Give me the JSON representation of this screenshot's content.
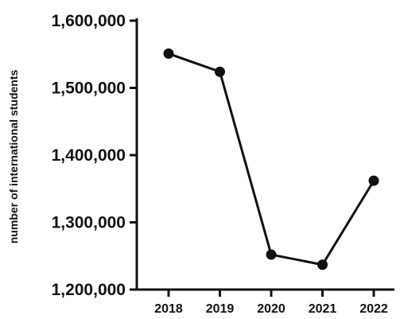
{
  "chart_data": {
    "type": "line",
    "title": "",
    "xlabel": "",
    "ylabel": "number of international students",
    "categories": [
      "2018",
      "2019",
      "2020",
      "2021",
      "2022"
    ],
    "series": [
      {
        "values": [
          1551000,
          1524000,
          1252000,
          1237000,
          1362000
        ]
      }
    ],
    "ylim": [
      1200000,
      1600000
    ],
    "yticks": [
      1200000,
      1300000,
      1400000,
      1500000,
      1600000
    ],
    "ytick_labels": [
      "1,200,000",
      "1,300,000",
      "1,400,000",
      "1,500,000",
      "1,600,000"
    ],
    "grid": false,
    "legend": "none",
    "line_color": "#111111",
    "marker_color": "#111111"
  }
}
